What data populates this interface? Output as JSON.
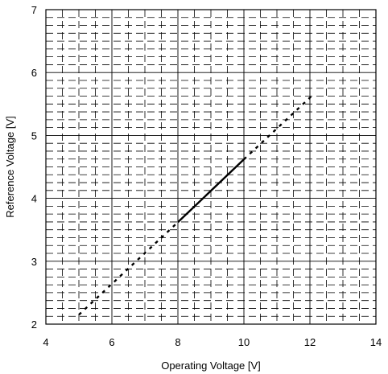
{
  "chart_data": {
    "type": "line",
    "title": "",
    "xlabel": "Operating Voltage [V]",
    "ylabel": "Reference Voltage [V]",
    "xlim": [
      4,
      14
    ],
    "ylim": [
      2,
      7
    ],
    "x_ticks": [
      4,
      6,
      8,
      10,
      12,
      14
    ],
    "y_ticks": [
      2,
      3,
      4,
      5,
      6,
      7
    ],
    "x_tick_labels": [
      "4",
      "6",
      "8",
      "10",
      "12",
      "14"
    ],
    "y_tick_labels": [
      "2",
      "3",
      "4",
      "5",
      "6",
      "7"
    ],
    "grid": true,
    "legend": "none",
    "series": [
      {
        "style": "dashed",
        "points": [
          [
            5.0,
            2.15
          ],
          [
            8.0,
            3.62
          ]
        ]
      },
      {
        "style": "solid",
        "points": [
          [
            8.0,
            3.62
          ],
          [
            10.0,
            4.62
          ]
        ]
      },
      {
        "style": "dashed",
        "points": [
          [
            10.0,
            4.62
          ],
          [
            12.1,
            5.65
          ]
        ]
      }
    ]
  }
}
